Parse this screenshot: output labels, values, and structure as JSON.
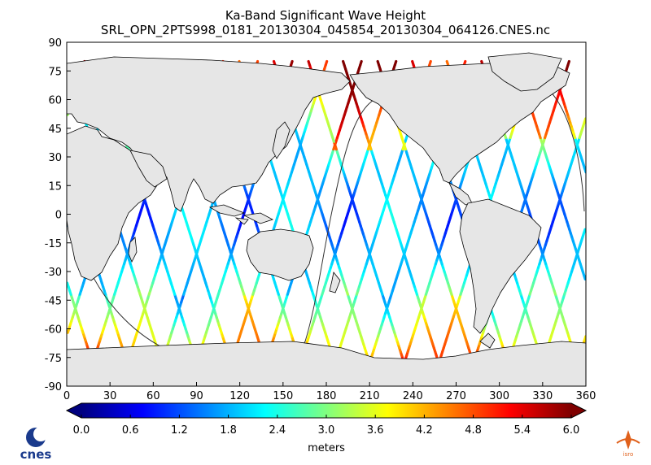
{
  "title": "Ka-Band Significant Wave Height",
  "subtitle": "SRL_OPN_2PTS998_0181_20130304_045854_20130304_064126.CNES.nc",
  "map": {
    "lon_range": [
      0,
      360
    ],
    "lat_range": [
      -90,
      90
    ],
    "x_ticks": [
      "0",
      "30",
      "60",
      "90",
      "120",
      "150",
      "180",
      "210",
      "240",
      "270",
      "300",
      "330",
      "360"
    ],
    "y_ticks": [
      "90",
      "75",
      "60",
      "45",
      "30",
      "15",
      "0",
      "-15",
      "-30",
      "-45",
      "-60",
      "-75",
      "-90"
    ],
    "land_color": "#e6e6e6",
    "coastline_color": "#000000"
  },
  "colorbar": {
    "range": [
      0.0,
      6.0
    ],
    "ticks": [
      "0.0",
      "0.6",
      "1.2",
      "1.8",
      "2.4",
      "3.0",
      "3.6",
      "4.2",
      "4.8",
      "5.4",
      "6.0"
    ],
    "label": "meters",
    "colormap": "jet"
  },
  "logos": {
    "left_text": "cnes",
    "right_text": "isro"
  }
}
